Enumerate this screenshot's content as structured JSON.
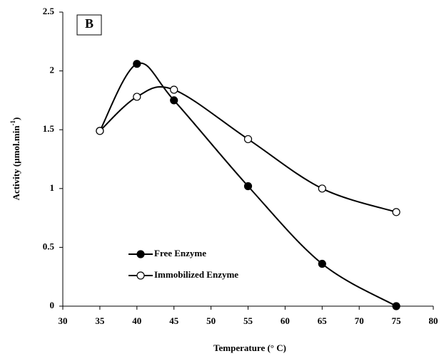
{
  "chart_data": {
    "type": "line",
    "panel_label": "B",
    "xlabel": "Temperature (° C)",
    "ylabel": "Activity (µmol.min",
    "ylabel_sup": "-1",
    "ylabel_end": ")",
    "x": [
      35,
      40,
      45,
      55,
      65,
      75
    ],
    "series": [
      {
        "name": "Free Enzyme",
        "color": "#000000",
        "marker_fill": "#000000",
        "values": [
          1.49,
          2.06,
          1.75,
          1.02,
          0.36,
          0
        ]
      },
      {
        "name": "Immobilized Enzyme",
        "color": "#000000",
        "marker_fill": "#ffffff",
        "values": [
          1.49,
          1.78,
          1.84,
          1.42,
          1.0,
          0.8
        ]
      }
    ],
    "xlim": [
      30,
      80
    ],
    "xticks": [
      30,
      35,
      40,
      45,
      50,
      55,
      60,
      65,
      70,
      75,
      80
    ],
    "ylim": [
      0,
      2.5
    ],
    "yticks": [
      0,
      0.5,
      1,
      1.5,
      2,
      2.5
    ],
    "smooth": true,
    "legend": "lower-left"
  }
}
